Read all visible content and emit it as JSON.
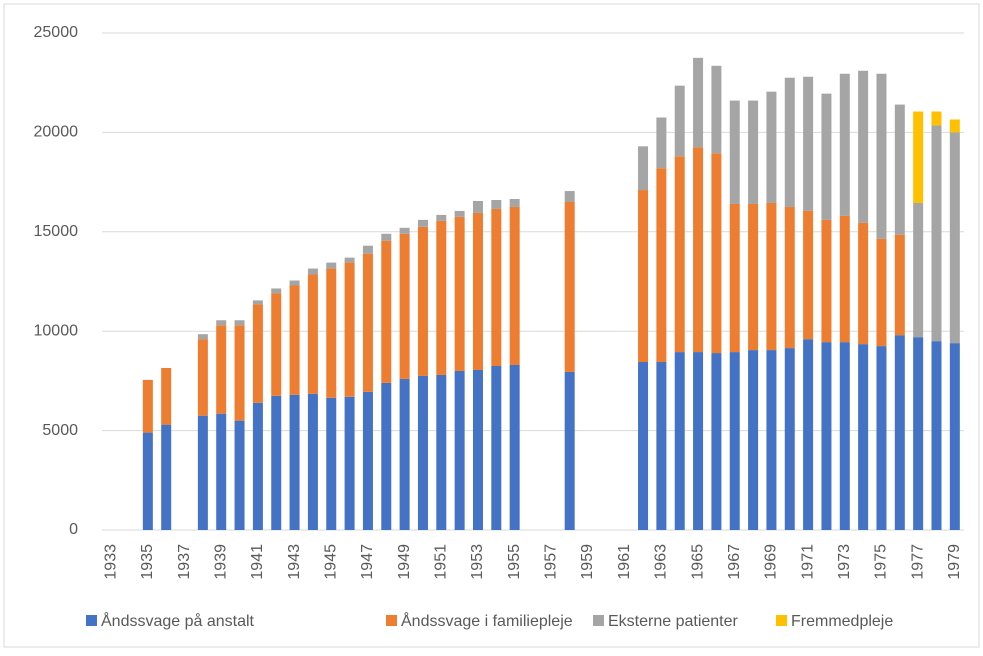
{
  "chart_data": {
    "type": "stacked_bar",
    "categories": [
      "1933",
      null,
      "1935",
      null,
      "1937",
      null,
      "1939",
      null,
      "1941",
      null,
      "1943",
      null,
      "1945",
      null,
      "1947",
      null,
      "1949",
      null,
      "1951",
      null,
      "1953",
      null,
      "1955",
      null,
      "1957",
      null,
      "1959",
      null,
      "1961",
      null,
      "1963",
      null,
      "1965",
      null,
      "1967",
      null,
      "1969",
      null,
      "1971",
      null,
      "1973",
      null,
      "1975",
      null,
      "1977",
      null,
      "1979"
    ],
    "series": [
      {
        "name": "Åndssvage på anstalt",
        "color": "#4472c4",
        "values": [
          null,
          null,
          4900,
          5300,
          null,
          5750,
          5850,
          5500,
          6400,
          6750,
          6800,
          6850,
          6650,
          6700,
          6950,
          7400,
          7600,
          7750,
          7800,
          8000,
          8050,
          8250,
          8300,
          null,
          null,
          7950,
          null,
          null,
          null,
          8450,
          8450,
          8950,
          8950,
          8900,
          8950,
          9050,
          9050,
          9150,
          9600,
          9450,
          9450,
          9350,
          9250,
          9800,
          9700,
          9500,
          9400
        ]
      },
      {
        "name": "Åndssvage i familiepleje",
        "color": "#ed7d31",
        "values": [
          null,
          null,
          2650,
          2850,
          null,
          3850,
          4450,
          4800,
          4950,
          5150,
          5500,
          6000,
          6500,
          6750,
          6950,
          7150,
          7300,
          7500,
          7750,
          7750,
          7900,
          7900,
          7950,
          null,
          null,
          8550,
          null,
          null,
          null,
          8650,
          9750,
          9850,
          10300,
          10050,
          7450,
          7350,
          7400,
          7100,
          6450,
          6150,
          6350,
          6100,
          5400,
          5050,
          null,
          null,
          null
        ]
      },
      {
        "name": "Eksterne patienter",
        "color": "#a5a5a5",
        "values": [
          null,
          null,
          null,
          null,
          null,
          250,
          250,
          250,
          200,
          250,
          250,
          300,
          300,
          250,
          400,
          350,
          300,
          350,
          300,
          300,
          600,
          450,
          400,
          null,
          null,
          550,
          null,
          null,
          null,
          2200,
          2550,
          3550,
          4500,
          4400,
          5200,
          5200,
          5600,
          6500,
          6750,
          6350,
          7150,
          7650,
          8300,
          6550,
          6750,
          10850,
          10600
        ]
      },
      {
        "name": "Fremmedpleje",
        "color": "#ffc000",
        "values": [
          null,
          null,
          null,
          null,
          null,
          null,
          null,
          null,
          null,
          null,
          null,
          null,
          null,
          null,
          null,
          null,
          null,
          null,
          null,
          null,
          null,
          null,
          null,
          null,
          null,
          null,
          null,
          null,
          null,
          null,
          null,
          null,
          null,
          null,
          null,
          null,
          null,
          null,
          null,
          null,
          null,
          null,
          null,
          null,
          4600,
          700,
          650
        ]
      }
    ],
    "ylim": [
      0,
      25000
    ],
    "yticks": [
      0,
      5000,
      10000,
      15000,
      20000,
      25000
    ],
    "grid": true,
    "legend": "bottom"
  }
}
